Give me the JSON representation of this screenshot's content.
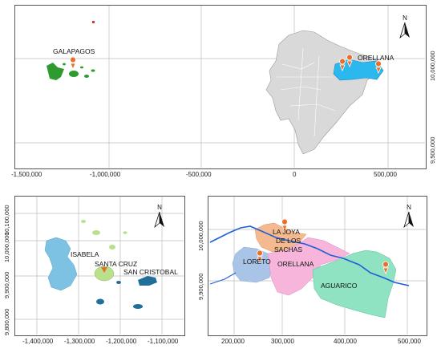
{
  "panels": {
    "overview": {
      "x_ticks": [
        "-1,500,000",
        "-1,000,000",
        "-500,000",
        "0",
        "500,000"
      ],
      "y_ticks": [
        "10,000,000",
        "9,500,000"
      ],
      "labels": {
        "galapagos": "GALAPAGOS",
        "orellana": "ORELLANA"
      },
      "north": "N"
    },
    "galapagos": {
      "x_ticks": [
        "-1,400,000",
        "-1,300,000",
        "-1,200,000",
        "-1,100,000"
      ],
      "y_ticks": [
        "10,100,000",
        "10,000,000",
        "9,900,000",
        "9,800,000"
      ],
      "labels": {
        "isabela": "ISABELA",
        "santa_cruz": "SANTA CRUZ",
        "san_cristobal": "SAN CRISTOBAL"
      },
      "north": "N"
    },
    "orellana": {
      "x_ticks": [
        "200,000",
        "300,000",
        "400,000",
        "500,000"
      ],
      "y_ticks": [
        "10,000,000",
        "9,900,000"
      ],
      "labels": {
        "la_joya_1": "LA JOYA",
        "la_joya_2": "DE LOS",
        "la_joya_3": "SACHAS",
        "loreto": "LORETO",
        "orellana": "ORELLANA",
        "aguarico": "AGUARICO"
      },
      "north": "N"
    }
  },
  "colors": {
    "galapagos_green": "#2e9b2e",
    "orellana_blue": "#2bb8ee",
    "ecuador_gray": "#d9d9d9",
    "marker_orange": "#e8702a",
    "isabela_blue": "#7dc1e3",
    "santa_cruz_green": "#b9e08a",
    "san_cristobal_dark": "#1f6f9a",
    "joya_orange": "#f4b98f",
    "loreto_blue": "#a9c4e6",
    "orellana_pink": "#f7b5dc",
    "aguarico_green": "#8fe3c3",
    "river_blue": "#1f5fd6"
  },
  "icons": [
    "north-arrow-icon",
    "location-marker-icon"
  ]
}
